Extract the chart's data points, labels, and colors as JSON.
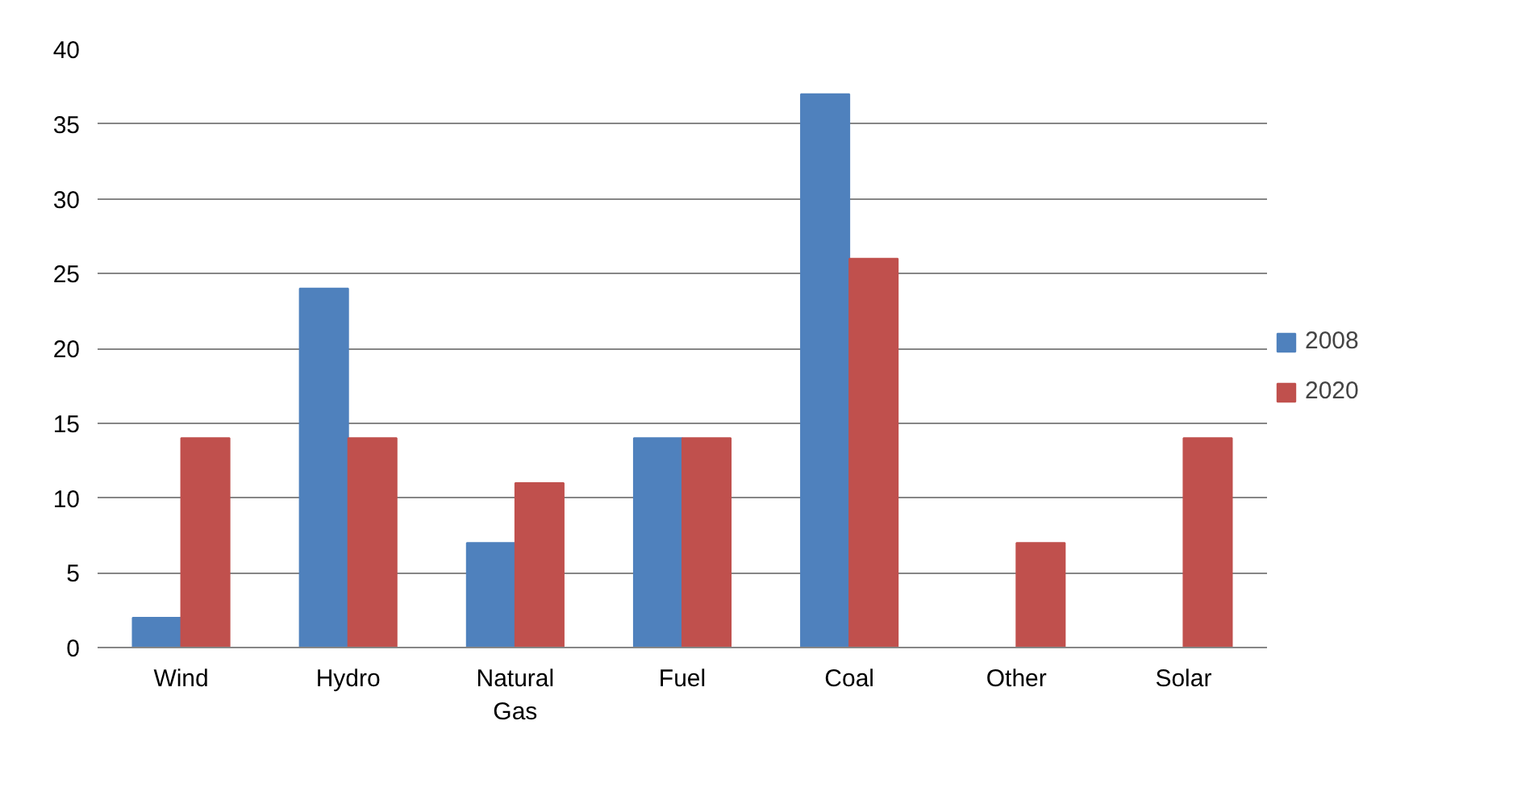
{
  "chart_data": {
    "type": "bar",
    "categories": [
      "Wind",
      "Hydro",
      "Natural Gas",
      "Fuel",
      "Coal",
      "Other",
      "Solar"
    ],
    "series": [
      {
        "name": "2008",
        "color": "#4f81bd",
        "values": [
          2,
          24,
          7,
          14,
          37,
          null,
          null
        ]
      },
      {
        "name": "2020",
        "color": "#c0504d",
        "values": [
          14,
          14,
          11,
          14,
          26,
          7,
          14
        ]
      }
    ],
    "ylim": [
      0,
      40
    ],
    "yticks": [
      0,
      5,
      10,
      15,
      20,
      25,
      30,
      35,
      40
    ],
    "grid": "y",
    "legend": "right"
  }
}
